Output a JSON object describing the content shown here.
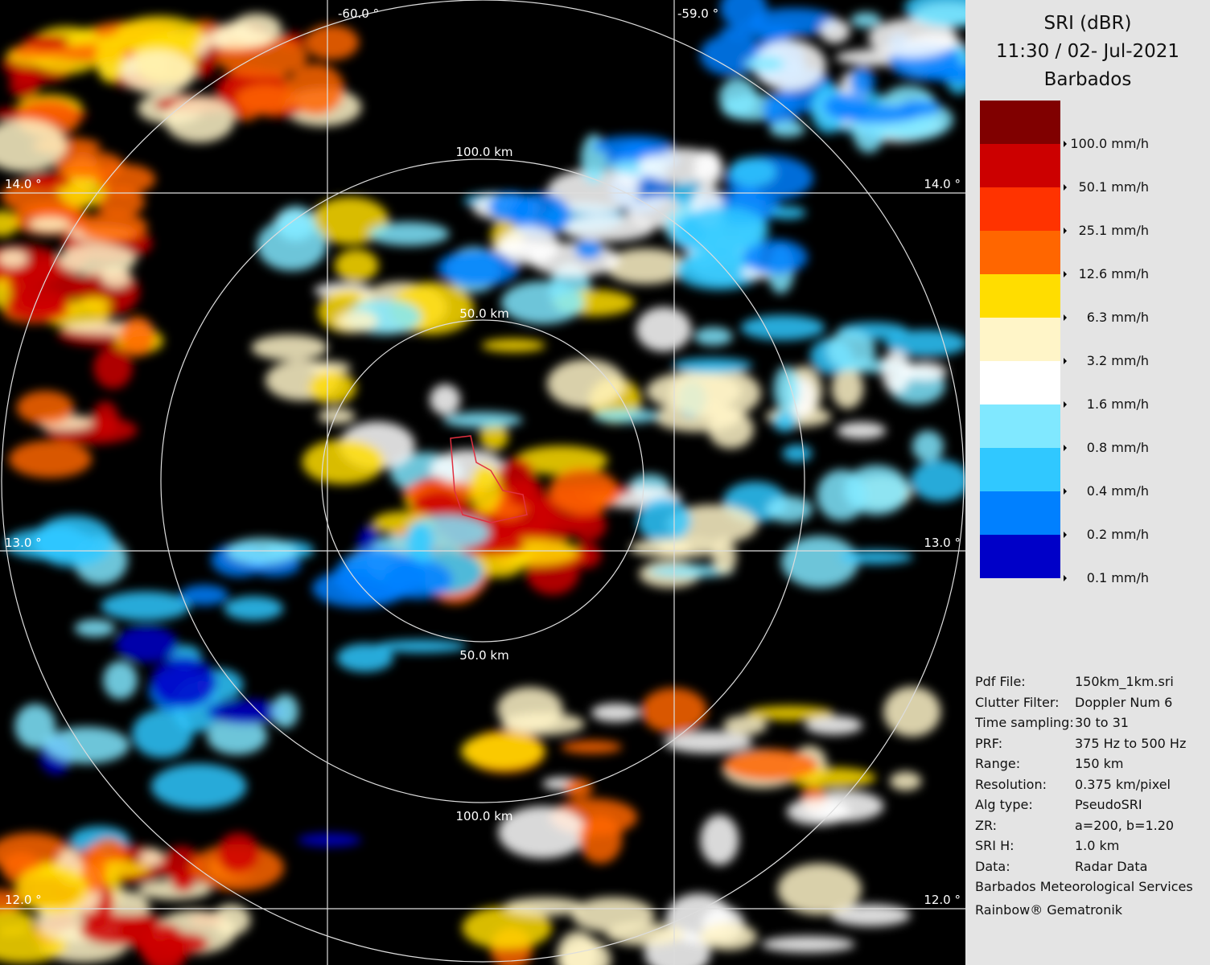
{
  "header": {
    "title": "SRI (dBR)",
    "time": "11:30 / 02- Jul-2021",
    "site": "Barbados"
  },
  "legend": {
    "colors": [
      "#800000",
      "#cc0000",
      "#ff3300",
      "#ff6600",
      "#ffdd00",
      "#fff5c8",
      "#ffffff",
      "#80e8ff",
      "#30c8ff",
      "#0080ff",
      "#0000c8"
    ],
    "labels": [
      "100.0 mm/h",
      "50.1 mm/h",
      "25.1 mm/h",
      "12.6 mm/h",
      "6.3 mm/h",
      "3.2 mm/h",
      "1.6 mm/h",
      "0.8 mm/h",
      "0.4 mm/h",
      "0.2 mm/h",
      "0.1 mm/h"
    ]
  },
  "map": {
    "longitudes": [
      "-60.0 °",
      "-59.0 °"
    ],
    "latitudes_left": [
      "14.0 °",
      "13.0 °",
      "12.0 °"
    ],
    "latitudes_right": [
      "14.0 °",
      "13.0 °",
      "12.0 °"
    ],
    "ring_labels": [
      "100.0 km",
      "50.0 km",
      "50.0 km",
      "100.0 km"
    ]
  },
  "info": {
    "rows": [
      [
        "Pdf File:",
        "150km_1km.sri"
      ],
      [
        "Clutter Filter:",
        "Doppler Num 6"
      ],
      [
        "Time sampling:",
        "30 to 31"
      ],
      [
        "PRF:",
        "375 Hz to 500 Hz"
      ],
      [
        "Range:",
        "150 km"
      ],
      [
        "Resolution:",
        "0.375 km/pixel"
      ],
      [
        "Alg type:",
        "PseudoSRI"
      ],
      [
        "ZR:",
        "a=200, b=1.20"
      ],
      [
        "SRI H:",
        "1.0 km"
      ],
      [
        "Data:",
        "Radar Data"
      ]
    ],
    "footer": [
      "Barbados Meteorological Services",
      "Rainbow® Gematronik"
    ]
  }
}
